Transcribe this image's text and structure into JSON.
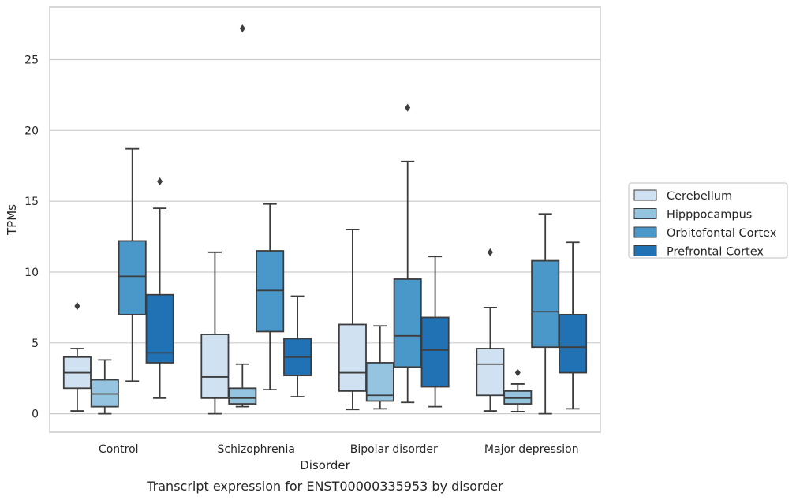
{
  "chart_data": {
    "type": "boxplot",
    "xlabel": "Disorder",
    "ylabel": "TPMs",
    "caption": "Transcript expression for ENST00000335953 by disorder",
    "ylim": [
      -1.3,
      28.7
    ],
    "yticks": [
      0,
      5,
      10,
      15,
      20,
      25
    ],
    "ytick_labels": [
      "0",
      "5",
      "10",
      "15",
      "20",
      "25"
    ],
    "grid": "horizontal",
    "legend_position": "right",
    "categories": [
      "Control",
      "Schizophrenia",
      "Bipolar disorder",
      "Major depression"
    ],
    "series": [
      {
        "name": "Cerebellum",
        "color": "#d0e1f2",
        "boxes": [
          {
            "whisker_low": 0.2,
            "q1": 1.8,
            "median": 2.9,
            "q3": 4.0,
            "whisker_high": 4.6,
            "outliers": [
              7.6
            ]
          },
          {
            "whisker_low": 0.0,
            "q1": 1.1,
            "median": 2.6,
            "q3": 5.6,
            "whisker_high": 11.4,
            "outliers": []
          },
          {
            "whisker_low": 0.3,
            "q1": 1.6,
            "median": 2.9,
            "q3": 6.3,
            "whisker_high": 13.0,
            "outliers": []
          },
          {
            "whisker_low": 0.2,
            "q1": 1.3,
            "median": 3.5,
            "q3": 4.6,
            "whisker_high": 7.5,
            "outliers": [
              11.4
            ]
          }
        ]
      },
      {
        "name": "Hipppocampus",
        "color": "#94c4df",
        "boxes": [
          {
            "whisker_low": 0.0,
            "q1": 0.5,
            "median": 1.4,
            "q3": 2.4,
            "whisker_high": 3.8,
            "outliers": []
          },
          {
            "whisker_low": 0.5,
            "q1": 0.7,
            "median": 1.1,
            "q3": 1.8,
            "whisker_high": 3.5,
            "outliers": [
              27.2
            ]
          },
          {
            "whisker_low": 0.35,
            "q1": 0.9,
            "median": 1.3,
            "q3": 3.6,
            "whisker_high": 6.2,
            "outliers": []
          },
          {
            "whisker_low": 0.15,
            "q1": 0.7,
            "median": 1.1,
            "q3": 1.6,
            "whisker_high": 2.1,
            "outliers": [
              2.9
            ]
          }
        ]
      },
      {
        "name": "Orbitofontal Cortex",
        "color": "#4a98c9",
        "boxes": [
          {
            "whisker_low": 2.3,
            "q1": 7.0,
            "median": 9.7,
            "q3": 12.2,
            "whisker_high": 18.7,
            "outliers": []
          },
          {
            "whisker_low": 1.7,
            "q1": 5.8,
            "median": 8.7,
            "q3": 11.5,
            "whisker_high": 14.8,
            "outliers": []
          },
          {
            "whisker_low": 0.8,
            "q1": 3.3,
            "median": 5.5,
            "q3": 9.5,
            "whisker_high": 17.8,
            "outliers": [
              21.6
            ]
          },
          {
            "whisker_low": 0.0,
            "q1": 4.7,
            "median": 7.2,
            "q3": 10.8,
            "whisker_high": 14.1,
            "outliers": []
          }
        ]
      },
      {
        "name": "Prefrontal Cortex",
        "color": "#2171b5",
        "boxes": [
          {
            "whisker_low": 1.1,
            "q1": 3.6,
            "median": 4.3,
            "q3": 8.4,
            "whisker_high": 14.5,
            "outliers": [
              16.4
            ]
          },
          {
            "whisker_low": 1.2,
            "q1": 2.7,
            "median": 4.0,
            "q3": 5.3,
            "whisker_high": 8.3,
            "outliers": []
          },
          {
            "whisker_low": 0.5,
            "q1": 1.9,
            "median": 4.5,
            "q3": 6.8,
            "whisker_high": 11.1,
            "outliers": []
          },
          {
            "whisker_low": 0.35,
            "q1": 2.9,
            "median": 4.7,
            "q3": 7.0,
            "whisker_high": 12.1,
            "outliers": []
          }
        ]
      }
    ]
  }
}
